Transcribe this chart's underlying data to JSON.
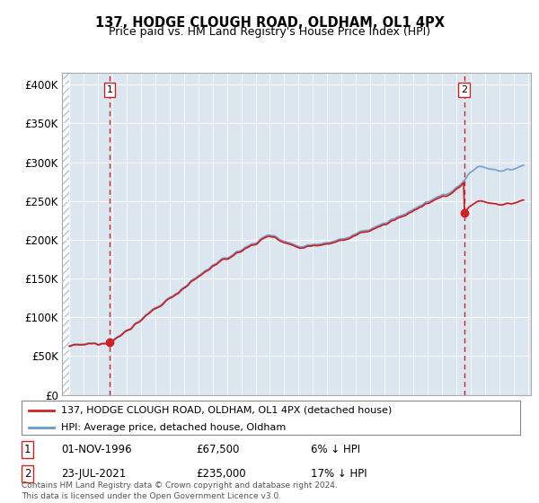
{
  "title": "137, HODGE CLOUGH ROAD, OLDHAM, OL1 4PX",
  "subtitle": "Price paid vs. HM Land Registry's House Price Index (HPI)",
  "legend_line1": "137, HODGE CLOUGH ROAD, OLDHAM, OL1 4PX (detached house)",
  "legend_line2": "HPI: Average price, detached house, Oldham",
  "annotation1_label": "1",
  "annotation1_date": "01-NOV-1996",
  "annotation1_price": "£67,500",
  "annotation1_hpi": "6% ↓ HPI",
  "annotation1_year": 1996.83,
  "annotation1_value": 67500,
  "annotation2_label": "2",
  "annotation2_date": "23-JUL-2021",
  "annotation2_price": "£235,000",
  "annotation2_hpi": "17% ↓ HPI",
  "annotation2_year": 2021.55,
  "annotation2_value": 235000,
  "ylabel_ticks": [
    "£0",
    "£50K",
    "£100K",
    "£150K",
    "£200K",
    "£250K",
    "£300K",
    "£350K",
    "£400K"
  ],
  "ytick_values": [
    0,
    50000,
    100000,
    150000,
    200000,
    250000,
    300000,
    350000,
    400000
  ],
  "xmin": 1993.5,
  "xmax": 2026.2,
  "ymin": 0,
  "ymax": 415000,
  "hpi_color": "#6699cc",
  "price_color": "#cc2222",
  "dashed_line_color": "#cc2222",
  "plot_bg_color": "#dce6f1",
  "grid_color": "#ffffff",
  "footnote": "Contains HM Land Registry data © Crown copyright and database right 2024.\nThis data is licensed under the Open Government Licence v3.0."
}
